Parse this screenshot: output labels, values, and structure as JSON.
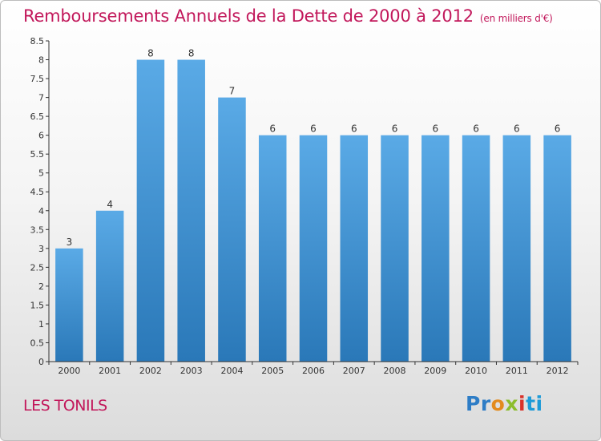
{
  "title": "Remboursements Annuels de la Dette de 2000 à 2012",
  "unit_label": "(en milliers d'€)",
  "commune": "LES TONILS",
  "logo": [
    "Pr",
    "o",
    "x",
    "i",
    "ti"
  ],
  "colors": {
    "accent": "#c2185b",
    "bar_light": "#5aaae6",
    "bar_dark": "#2a78b8",
    "axis": "#333333"
  },
  "chart_data": {
    "type": "bar",
    "categories": [
      "2000",
      "2001",
      "2002",
      "2003",
      "2004",
      "2005",
      "2006",
      "2007",
      "2008",
      "2009",
      "2010",
      "2011",
      "2012"
    ],
    "values": [
      3,
      4,
      8,
      8,
      7,
      6,
      6,
      6,
      6,
      6,
      6,
      6,
      6
    ],
    "data_labels": [
      "3",
      "4",
      "8",
      "8",
      "7",
      "6",
      "6",
      "6",
      "6",
      "6",
      "6",
      "6",
      "6"
    ],
    "ylim": [
      0,
      8.5
    ],
    "yticks": [
      0,
      0.5,
      1,
      1.5,
      2,
      2.5,
      3,
      3.5,
      4,
      4.5,
      5,
      5.5,
      6,
      6.5,
      7,
      7.5,
      8,
      8.5
    ],
    "ytick_labels": [
      "0",
      "0.5",
      "1",
      "1.5",
      "2",
      "2.5",
      "3",
      "3.5",
      "4",
      "4.5",
      "5",
      "5.5",
      "6",
      "6.5",
      "7",
      "7.5",
      "8",
      "8.5"
    ],
    "title": "Remboursements Annuels de la Dette de 2000 à 2012",
    "xlabel": "",
    "ylabel": "",
    "grid": false,
    "legend": "none"
  }
}
